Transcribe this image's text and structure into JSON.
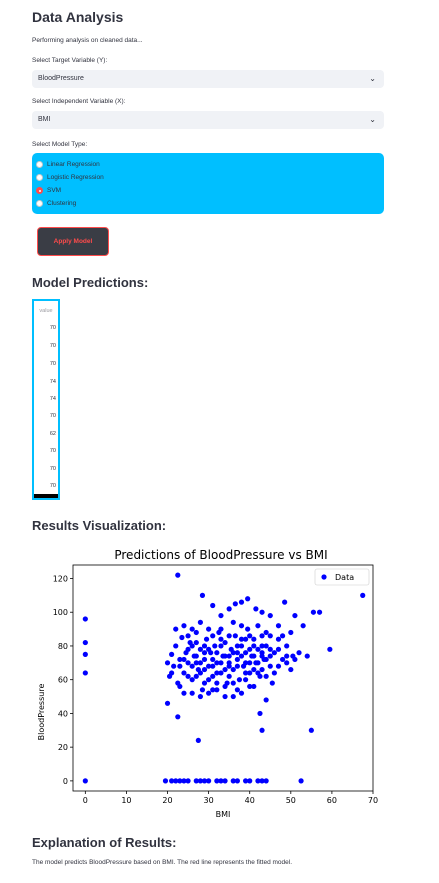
{
  "header": {
    "title": "Data Analysis",
    "subtitle": "Performing analysis on cleaned data..."
  },
  "target_select": {
    "label": "Select Target Variable (Y):",
    "value": "BloodPressure"
  },
  "independent_select": {
    "label": "Select Independent Variable (X):",
    "value": "BMI"
  },
  "model_type": {
    "label": "Select Model Type:",
    "options": [
      "Linear Regression",
      "Logistic Regression",
      "SVM",
      "Clustering"
    ],
    "selected": "SVM"
  },
  "apply_button": {
    "label": "Apply Model"
  },
  "predictions": {
    "title": "Model Predictions:",
    "column": "value",
    "values": [
      "70",
      "70",
      "70",
      "74",
      "74",
      "70",
      "62",
      "70",
      "70",
      "70"
    ]
  },
  "visualization": {
    "title": "Results Visualization:"
  },
  "chart_data": {
    "type": "scatter",
    "title": "Predictions of BloodPressure vs BMI",
    "xlabel": "BMI",
    "ylabel": "BloodPressure",
    "xlim": [
      -3,
      70
    ],
    "ylim": [
      -6,
      128
    ],
    "xticks": [
      "0",
      "10",
      "20",
      "30",
      "40",
      "50",
      "60",
      "70"
    ],
    "yticks": [
      "0",
      "20",
      "40",
      "60",
      "80",
      "100",
      "120"
    ],
    "legend_location": "top-right",
    "series": [
      {
        "name": "Data",
        "color": "#0000ff",
        "points": [
          [
            0,
            96
          ],
          [
            0,
            82
          ],
          [
            0,
            75
          ],
          [
            0,
            64
          ],
          [
            0,
            0
          ],
          [
            19.5,
            0
          ],
          [
            21,
            0
          ],
          [
            22,
            0
          ],
          [
            23,
            0
          ],
          [
            24,
            0
          ],
          [
            25,
            0
          ],
          [
            27,
            0
          ],
          [
            28,
            0
          ],
          [
            29,
            0
          ],
          [
            30,
            0
          ],
          [
            32,
            0
          ],
          [
            33,
            0
          ],
          [
            34,
            0
          ],
          [
            36,
            0
          ],
          [
            37,
            0
          ],
          [
            39,
            0
          ],
          [
            40,
            0
          ],
          [
            42,
            0
          ],
          [
            43,
            0
          ],
          [
            44,
            0
          ],
          [
            52.5,
            0
          ],
          [
            27.5,
            24
          ],
          [
            22.5,
            122
          ],
          [
            24,
            92
          ],
          [
            26,
            90
          ],
          [
            28.5,
            110
          ],
          [
            31,
            104
          ],
          [
            33,
            98
          ],
          [
            35,
            102
          ],
          [
            36.5,
            105
          ],
          [
            38,
            106
          ],
          [
            39.5,
            108
          ],
          [
            41.5,
            102
          ],
          [
            43,
            100
          ],
          [
            45,
            98
          ],
          [
            47,
            92
          ],
          [
            48.5,
            106
          ],
          [
            51,
            98
          ],
          [
            53,
            92
          ],
          [
            55.5,
            100
          ],
          [
            57,
            100
          ],
          [
            59.5,
            78
          ],
          [
            67.5,
            110
          ],
          [
            55,
            30
          ],
          [
            43,
            30
          ],
          [
            42.5,
            40
          ],
          [
            22.5,
            38
          ],
          [
            20,
            46
          ],
          [
            44,
            48
          ],
          [
            45.5,
            58
          ],
          [
            20,
            70
          ],
          [
            20.5,
            62
          ],
          [
            21,
            75
          ],
          [
            21.5,
            68
          ],
          [
            22,
            80
          ],
          [
            22.5,
            58
          ],
          [
            23,
            72
          ],
          [
            23.5,
            85
          ],
          [
            24,
            64
          ],
          [
            24.5,
            76
          ],
          [
            25,
            70
          ],
          [
            25.5,
            82
          ],
          [
            26,
            60
          ],
          [
            26.5,
            74
          ],
          [
            27,
            88
          ],
          [
            27.5,
            66
          ],
          [
            28,
            78
          ],
          [
            28.5,
            54
          ],
          [
            29,
            72
          ],
          [
            29.5,
            84
          ],
          [
            30,
            68
          ],
          [
            30.5,
            76
          ],
          [
            31,
            62
          ],
          [
            31.5,
            80
          ],
          [
            32,
            70
          ],
          [
            32.5,
            88
          ],
          [
            33,
            64
          ],
          [
            33.5,
            74
          ],
          [
            34,
            82
          ],
          [
            34.5,
            58
          ],
          [
            35,
            70
          ],
          [
            35.5,
            78
          ],
          [
            36,
            66
          ],
          [
            36.5,
            86
          ],
          [
            37,
            72
          ],
          [
            37.5,
            60
          ],
          [
            38,
            80
          ],
          [
            38.5,
            68
          ],
          [
            39,
            76
          ],
          [
            39.5,
            90
          ],
          [
            40,
            64
          ],
          [
            40.5,
            74
          ],
          [
            41,
            84
          ],
          [
            41.5,
            70
          ],
          [
            42,
            78
          ],
          [
            42.5,
            62
          ],
          [
            43,
            86
          ],
          [
            43.5,
            72
          ],
          [
            44,
            80
          ],
          [
            45,
            68
          ],
          [
            46,
            76
          ],
          [
            47,
            84
          ],
          [
            48,
            72
          ],
          [
            49,
            80
          ],
          [
            50,
            66
          ],
          [
            50.5,
            74
          ],
          [
            52,
            76
          ],
          [
            54,
            74
          ],
          [
            21,
            64
          ],
          [
            22,
            90
          ],
          [
            23,
            56
          ],
          [
            24,
            52
          ],
          [
            25,
            86
          ],
          [
            26,
            52
          ],
          [
            27,
            62
          ],
          [
            28,
            94
          ],
          [
            29,
            58
          ],
          [
            30,
            90
          ],
          [
            31,
            54
          ],
          [
            32,
            64
          ],
          [
            33,
            90
          ],
          [
            34,
            50
          ],
          [
            35,
            62
          ],
          [
            36,
            94
          ],
          [
            37,
            54
          ],
          [
            38,
            92
          ],
          [
            39,
            60
          ],
          [
            40,
            86
          ],
          [
            41,
            56
          ],
          [
            42,
            92
          ],
          [
            43,
            66
          ],
          [
            44,
            88
          ],
          [
            46,
            64
          ],
          [
            47,
            68
          ],
          [
            48,
            86
          ],
          [
            49,
            70
          ],
          [
            50,
            88
          ],
          [
            51,
            72
          ],
          [
            24,
            72
          ],
          [
            25,
            78
          ],
          [
            26,
            68
          ],
          [
            27,
            74
          ],
          [
            28,
            70
          ],
          [
            29,
            66
          ],
          [
            30,
            78
          ],
          [
            31,
            72
          ],
          [
            32,
            76
          ],
          [
            33,
            70
          ],
          [
            34,
            74
          ],
          [
            35,
            68
          ],
          [
            36,
            76
          ],
          [
            37,
            80
          ],
          [
            38,
            74
          ],
          [
            39,
            70
          ],
          [
            40,
            78
          ],
          [
            41,
            74
          ],
          [
            42,
            70
          ],
          [
            43,
            76
          ],
          [
            44,
            72
          ],
          [
            45,
            78
          ],
          [
            26,
            80
          ],
          [
            27,
            70
          ],
          [
            28,
            64
          ],
          [
            29,
            80
          ],
          [
            30,
            60
          ],
          [
            31,
            86
          ],
          [
            32,
            58
          ],
          [
            33,
            80
          ],
          [
            34,
            66
          ],
          [
            35,
            86
          ],
          [
            36,
            58
          ],
          [
            37,
            68
          ],
          [
            38,
            84
          ],
          [
            39,
            64
          ],
          [
            40,
            70
          ],
          [
            41,
            80
          ],
          [
            42,
            64
          ],
          [
            43,
            74
          ],
          [
            44,
            62
          ],
          [
            45,
            86
          ],
          [
            28,
            50
          ],
          [
            30,
            52
          ],
          [
            32,
            54
          ],
          [
            34,
            56
          ],
          [
            36,
            50
          ],
          [
            38,
            52
          ],
          [
            40,
            56
          ],
          [
            23,
            68
          ],
          [
            25,
            62
          ],
          [
            27,
            82
          ],
          [
            29,
            76
          ],
          [
            31,
            68
          ],
          [
            33,
            84
          ],
          [
            35,
            74
          ],
          [
            37,
            76
          ],
          [
            39,
            84
          ],
          [
            41,
            66
          ],
          [
            43,
            80
          ],
          [
            45,
            74
          ],
          [
            47,
            78
          ],
          [
            49,
            74
          ]
        ]
      }
    ]
  },
  "explanation": {
    "title": "Explanation of Results:",
    "text": "The model predicts BloodPressure based on BMI. The red line represents the fitted model."
  }
}
